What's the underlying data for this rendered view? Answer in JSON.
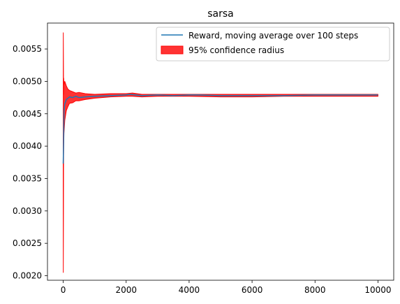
{
  "chart_data": {
    "type": "line",
    "title": "sarsa",
    "xlabel": "",
    "ylabel": "",
    "xlim": [
      -500,
      10500
    ],
    "ylim": [
      0.00193,
      0.0059
    ],
    "xticks": [
      0,
      2000,
      4000,
      6000,
      8000,
      10000
    ],
    "xtick_labels": [
      "0",
      "2000",
      "4000",
      "6000",
      "8000",
      "10000"
    ],
    "yticks": [
      0.002,
      0.0025,
      0.003,
      0.0035,
      0.004,
      0.0045,
      0.005,
      0.0055
    ],
    "ytick_labels": [
      "0.0020",
      "0.0025",
      "0.0030",
      "0.0035",
      "0.0040",
      "0.0045",
      "0.0050",
      "0.0055"
    ],
    "grid": false,
    "legend_position": "top-right",
    "legend": [
      {
        "label": "Reward, moving average over 100 steps",
        "kind": "line",
        "color": "#1f77b4"
      },
      {
        "label": "95% confidence radius",
        "kind": "patch",
        "color": "#ff0000"
      }
    ],
    "series": [
      {
        "name": "Reward, moving average over 100 steps",
        "color": "#1f77b4",
        "x": [
          0,
          10,
          25,
          50,
          100,
          150,
          200,
          300,
          400,
          500,
          700,
          1000,
          1500,
          2000,
          2100,
          2300,
          2500,
          3000,
          3500,
          4000,
          4300,
          5000,
          5700,
          6000,
          7000,
          8000,
          9000,
          10000
        ],
        "y": [
          0.00373,
          0.004,
          0.00455,
          0.00465,
          0.00472,
          0.00474,
          0.00476,
          0.00475,
          0.00477,
          0.00475,
          0.00476,
          0.00477,
          0.00478,
          0.00479,
          0.0048,
          0.00479,
          0.00478,
          0.00479,
          0.00478,
          0.00479,
          0.00479,
          0.00478,
          0.00478,
          0.00478,
          0.00478,
          0.00479,
          0.00479,
          0.00479
        ]
      }
    ],
    "confidence_band": {
      "name": "95% confidence radius",
      "color": "#ff0000",
      "x": [
        0,
        3,
        8,
        10,
        15,
        25,
        50,
        100,
        150,
        200,
        300,
        400,
        500,
        700,
        1000,
        1500,
        2000,
        2200,
        2500,
        3000,
        4000,
        5000,
        6000,
        7000,
        8000,
        9000,
        10000
      ],
      "upper": [
        0.004,
        0.00575,
        0.0052,
        0.0048,
        0.00505,
        0.00495,
        0.005,
        0.00493,
        0.00488,
        0.00486,
        0.00484,
        0.00482,
        0.00483,
        0.00481,
        0.0048,
        0.00481,
        0.00481,
        0.00482,
        0.0048,
        0.0048,
        0.0048,
        0.0048,
        0.0048,
        0.0048,
        0.0048,
        0.0048,
        0.0048
      ],
      "lower": [
        0.0034,
        0.00205,
        0.003,
        0.0036,
        0.004,
        0.0042,
        0.0044,
        0.00455,
        0.00461,
        0.00466,
        0.00467,
        0.0047,
        0.0047,
        0.00472,
        0.00474,
        0.00476,
        0.00477,
        0.00477,
        0.00476,
        0.00477,
        0.00477,
        0.00476,
        0.00476,
        0.00477,
        0.00477,
        0.00477,
        0.00477
      ]
    }
  }
}
